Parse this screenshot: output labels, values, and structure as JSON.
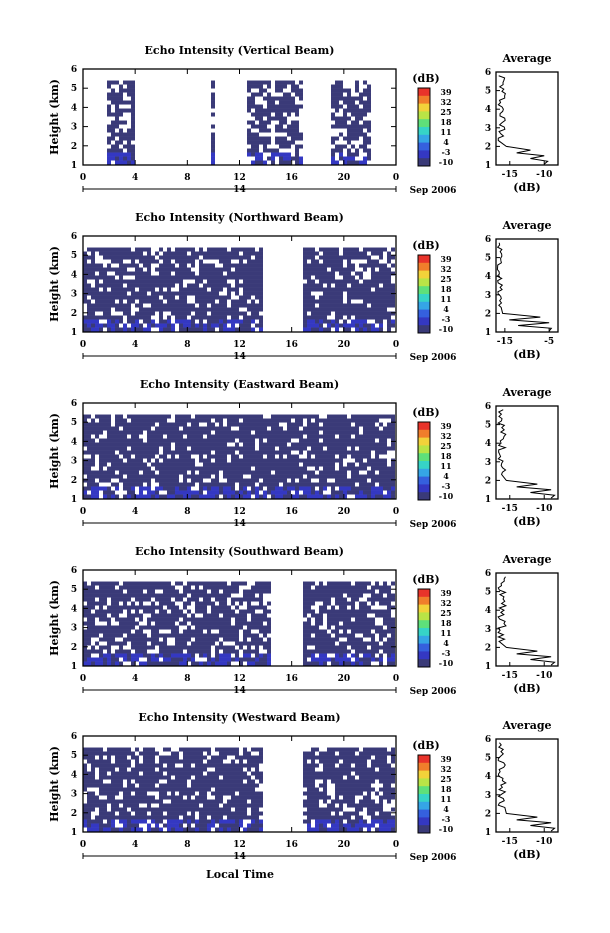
{
  "date_label": "Sep 2006",
  "day_label": "14",
  "xlabel_bottom": "Local Time",
  "avg_title": "Average",
  "avg_xlabel": "(dB)",
  "cb_unit": "(dB)",
  "cb_ticks": [
    "39",
    "32",
    "25",
    "18",
    "11",
    "4",
    "-3",
    "-10"
  ],
  "palette": [
    "#e8332a",
    "#f07e2b",
    "#f2d23a",
    "#b9e446",
    "#5ee07a",
    "#36d4c7",
    "#35a5e6",
    "#3560de",
    "#3438c2",
    "#3a3a78"
  ],
  "chart_data": [
    {
      "type": "heatmap",
      "title": "Echo Intensity (Vertical Beam)",
      "ylabel": "Height (km)",
      "xlim": [
        0,
        24
      ],
      "ylim": [
        1,
        6
      ],
      "xticks": [
        "0",
        "4",
        "8",
        "12",
        "16",
        "20",
        "0"
      ],
      "yticks": [
        "1",
        "2",
        "3",
        "4",
        "5",
        "6"
      ],
      "colorbar": {
        "unit": "(dB)",
        "range": [
          -10,
          39
        ]
      },
      "data_spans": [
        [
          2.0,
          4.1
        ],
        [
          9.8,
          10.2
        ],
        [
          12.7,
          16.8
        ],
        [
          19.2,
          22.3
        ]
      ],
      "top_km": 5.4,
      "noise_level": 0.28,
      "average_profile": {
        "xticks": [
          "-15",
          "-10"
        ],
        "xlim": [
          -17,
          -8
        ],
        "surface_peak_db": -10
      }
    },
    {
      "type": "heatmap",
      "title": "Echo Intensity (Northward Beam)",
      "ylabel": "Height (km)",
      "xlim": [
        0,
        24
      ],
      "ylim": [
        1,
        6
      ],
      "xticks": [
        "0",
        "4",
        "8",
        "12",
        "16",
        "20",
        "0"
      ],
      "yticks": [
        "1",
        "2",
        "3",
        "4",
        "5",
        "6"
      ],
      "colorbar": {
        "unit": "(dB)",
        "range": [
          -10,
          39
        ]
      },
      "data_spans": [
        [
          0,
          13.7
        ],
        [
          17.0,
          24
        ]
      ],
      "top_km": 5.4,
      "noise_level": 0.18,
      "average_profile": {
        "xticks": [
          "-15",
          "-5"
        ],
        "xlim": [
          -17,
          -3
        ],
        "surface_peak_db": -5
      }
    },
    {
      "type": "heatmap",
      "title": "Echo Intensity (Eastward Beam)",
      "ylabel": "Height (km)",
      "xlim": [
        0,
        24
      ],
      "ylim": [
        1,
        6
      ],
      "xticks": [
        "0",
        "4",
        "8",
        "12",
        "16",
        "20",
        "0"
      ],
      "yticks": [
        "1",
        "2",
        "3",
        "4",
        "5",
        "6"
      ],
      "colorbar": {
        "unit": "(dB)",
        "range": [
          -10,
          39
        ]
      },
      "data_spans": [
        [
          0,
          24
        ]
      ],
      "top_km": 5.4,
      "noise_level": 0.15,
      "average_profile": {
        "xticks": [
          "-15",
          "-10"
        ],
        "xlim": [
          -17,
          -8
        ],
        "surface_peak_db": -9
      }
    },
    {
      "type": "heatmap",
      "title": "Echo Intensity (Southward Beam)",
      "ylabel": "Height (km)",
      "xlim": [
        0,
        24
      ],
      "ylim": [
        1,
        6
      ],
      "xticks": [
        "0",
        "4",
        "8",
        "12",
        "16",
        "20",
        "0"
      ],
      "yticks": [
        "1",
        "2",
        "3",
        "4",
        "5",
        "6"
      ],
      "colorbar": {
        "unit": "(dB)",
        "range": [
          -10,
          39
        ]
      },
      "data_spans": [
        [
          0,
          14.5
        ],
        [
          17.0,
          24
        ]
      ],
      "top_km": 5.4,
      "noise_level": 0.2,
      "average_profile": {
        "xticks": [
          "-15",
          "-10"
        ],
        "xlim": [
          -17,
          -8
        ],
        "surface_peak_db": -9
      }
    },
    {
      "type": "heatmap",
      "title": "Echo Intensity (Westward Beam)",
      "ylabel": "Height (km)",
      "xlim": [
        0,
        24
      ],
      "ylim": [
        1,
        6
      ],
      "xticks": [
        "0",
        "4",
        "8",
        "12",
        "16",
        "20",
        "0"
      ],
      "yticks": [
        "1",
        "2",
        "3",
        "4",
        "5",
        "6"
      ],
      "colorbar": {
        "unit": "(dB)",
        "range": [
          -10,
          39
        ]
      },
      "data_spans": [
        [
          0,
          14.0
        ],
        [
          17.0,
          24
        ]
      ],
      "top_km": 5.4,
      "noise_level": 0.18,
      "average_profile": {
        "xticks": [
          "-15",
          "-10"
        ],
        "xlim": [
          -17,
          -8
        ],
        "surface_peak_db": -9
      }
    }
  ]
}
